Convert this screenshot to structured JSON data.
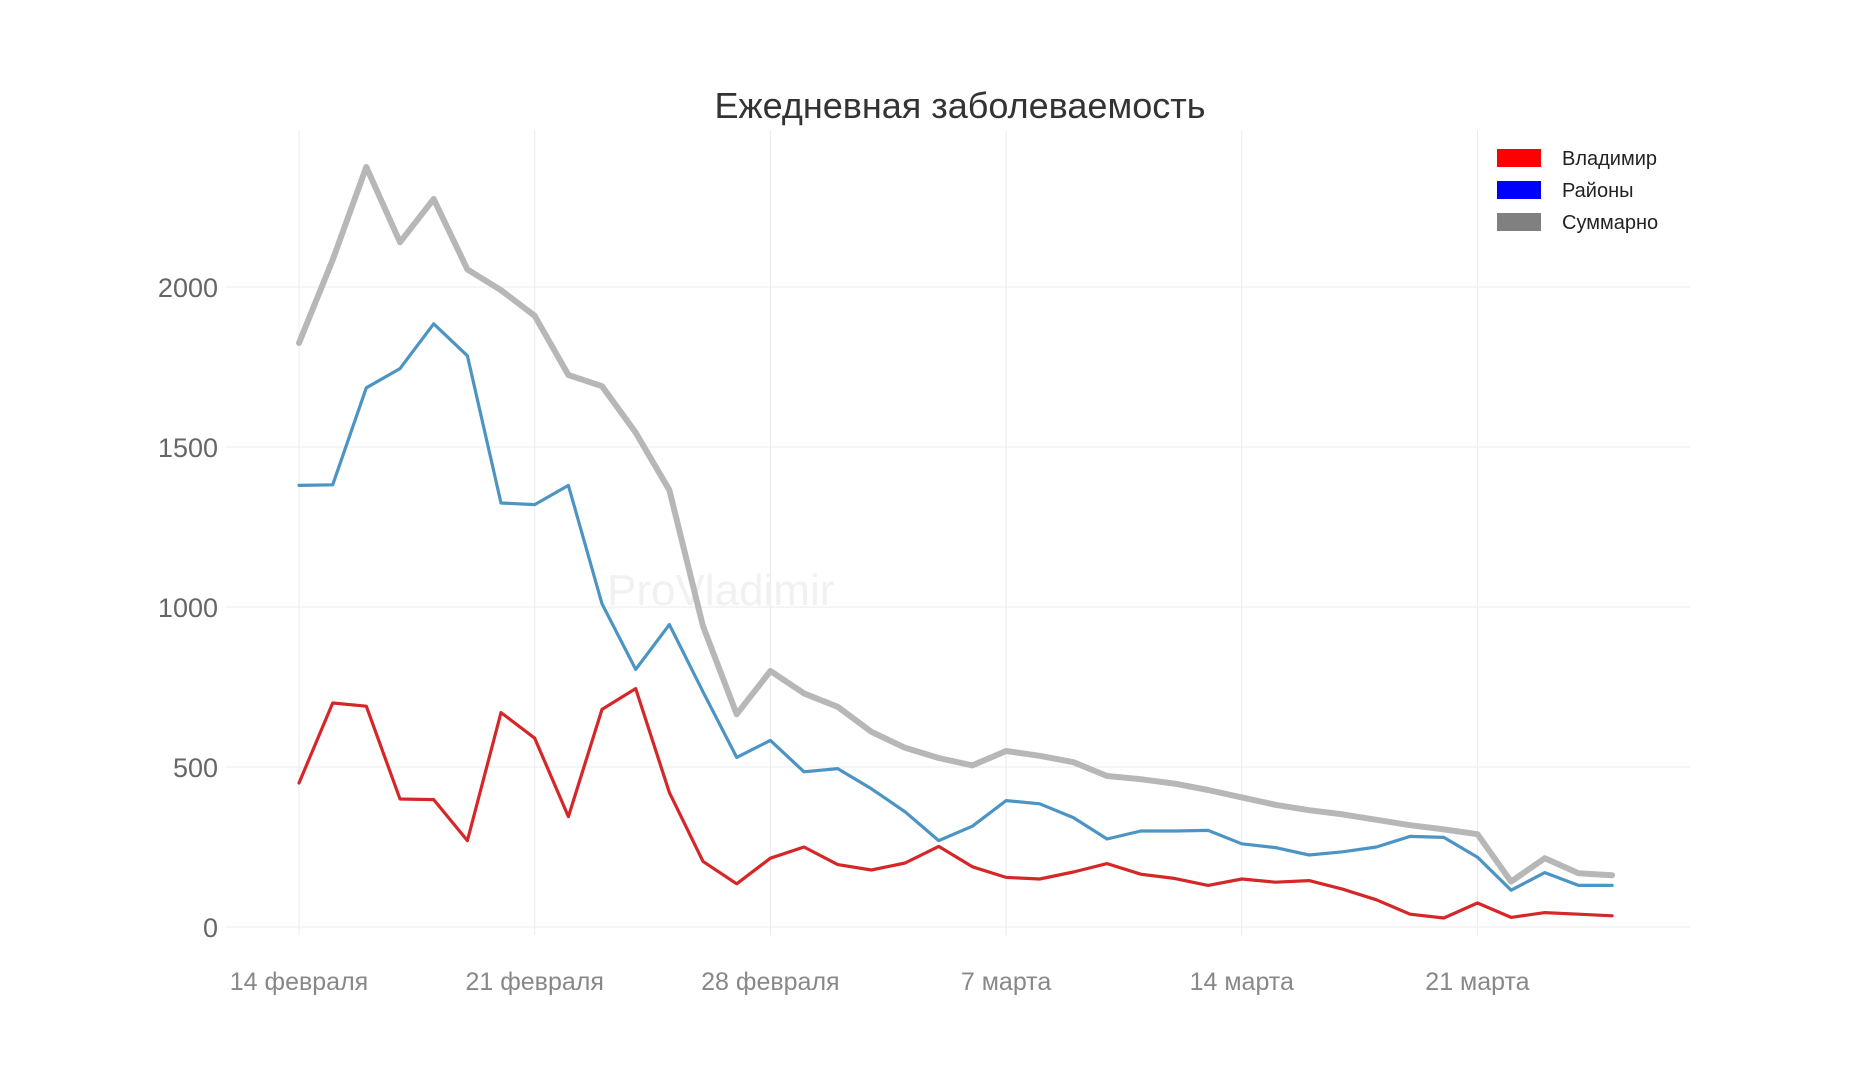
{
  "chart_data": {
    "type": "line",
    "title": "Ежедневная заболеваемость",
    "watermark": "ProVladimir",
    "xlabel": "",
    "ylabel": "",
    "ylim": [
      -30,
      2500
    ],
    "yticks": [
      0,
      500,
      1000,
      1500,
      2000
    ],
    "xticks": [
      {
        "day": 0,
        "label": "14 февраля"
      },
      {
        "day": 7,
        "label": "21 февраля"
      },
      {
        "day": 14,
        "label": "28 февраля"
      },
      {
        "day": 21,
        "label": "7 марта"
      },
      {
        "day": 28,
        "label": "14 марта"
      },
      {
        "day": 35,
        "label": "21 марта"
      }
    ],
    "x": [
      0,
      1,
      2,
      3,
      4,
      5,
      6,
      7,
      8,
      9,
      10,
      11,
      12,
      13,
      14,
      15,
      16,
      17,
      18,
      19,
      20,
      21,
      22,
      23,
      24,
      25,
      26,
      27,
      28,
      29,
      30,
      31,
      32,
      33,
      34,
      35,
      36,
      37,
      38,
      39
    ],
    "legend_position": "top-right",
    "series": [
      {
        "name": "Владимир",
        "legend_color": "#ff0000",
        "color": "#d62728",
        "values": [
          450,
          700,
          690,
          400,
          398,
          270,
          670,
          590,
          345,
          680,
          745,
          420,
          205,
          135,
          215,
          250,
          195,
          178,
          200,
          252,
          188,
          155,
          150,
          172,
          198,
          165,
          152,
          130,
          150,
          140,
          145,
          118,
          85,
          40,
          28,
          75,
          30,
          45,
          40,
          35
        ]
      },
      {
        "name": "Районы",
        "legend_color": "#0000ff",
        "color": "#4c94c4",
        "values": [
          1380,
          1382,
          1685,
          1745,
          1885,
          1785,
          1325,
          1320,
          1380,
          1010,
          805,
          945,
          735,
          530,
          583,
          485,
          495,
          432,
          360,
          270,
          315,
          395,
          385,
          342,
          275,
          300,
          300,
          302,
          260,
          248,
          225,
          235,
          250,
          283,
          280,
          218,
          115,
          170,
          130,
          130
        ]
      },
      {
        "name": "Суммарно",
        "legend_color": "#808080",
        "color": "#b7b7b7",
        "values": [
          1825,
          2085,
          2375,
          2140,
          2275,
          2055,
          1990,
          1910,
          1725,
          1690,
          1545,
          1365,
          940,
          665,
          800,
          730,
          688,
          610,
          560,
          528,
          505,
          550,
          535,
          515,
          472,
          462,
          448,
          428,
          405,
          382,
          365,
          352,
          335,
          318,
          305,
          290,
          142,
          215,
          168,
          162
        ]
      }
    ]
  }
}
